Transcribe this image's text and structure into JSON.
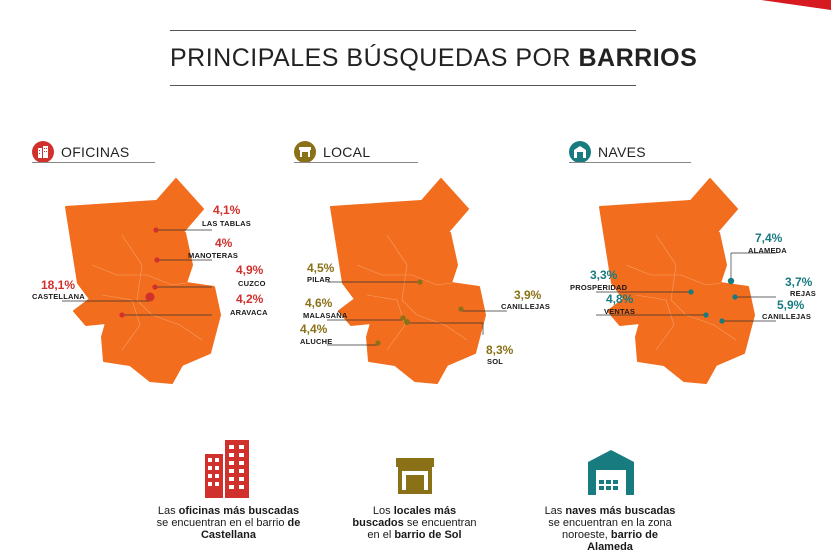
{
  "title": {
    "regular": "PRINCIPALES BÚSQUEDAS POR",
    "bold": "BARRIOS"
  },
  "colors": {
    "map": "#f26d1d",
    "oficinas": "#d0312d",
    "local": "#8a7118",
    "naves": "#177b80"
  },
  "sections": {
    "oficinas": {
      "label": "OFICINAS",
      "icon": "office-building-icon",
      "points": [
        {
          "pct": "4,1%",
          "name": "LAS TABLAS"
        },
        {
          "pct": "4%",
          "name": "MANOTERAS"
        },
        {
          "pct": "4,9%",
          "name": "CUZCO"
        },
        {
          "pct": "18,1%",
          "name": "CASTELLANA"
        },
        {
          "pct": "4,2%",
          "name": "ARAVACA"
        }
      ],
      "desc": {
        "a": "Las ",
        "b1": "oficinas más buscadas",
        "c": " se encuentran en el barrio ",
        "b2": "de Castellana"
      }
    },
    "local": {
      "label": "LOCAL",
      "icon": "shop-icon",
      "points": [
        {
          "pct": "4,5%",
          "name": "PILAR"
        },
        {
          "pct": "3,9%",
          "name": "CANILLEJAS"
        },
        {
          "pct": "4,6%",
          "name": "MALASAÑA"
        },
        {
          "pct": "4,4%",
          "name": "ALUCHE"
        },
        {
          "pct": "8,3%",
          "name": "SOL"
        }
      ],
      "desc": {
        "a": "Los ",
        "b1": "locales más buscados",
        "c": " se encuentran en el ",
        "b2": "barrio de Sol"
      }
    },
    "naves": {
      "label": "NAVES",
      "icon": "warehouse-icon",
      "points": [
        {
          "pct": "7,4%",
          "name": "ALAMEDA"
        },
        {
          "pct": "3,3%",
          "name": "PROSPERIDAD"
        },
        {
          "pct": "3,7%",
          "name": "REJAS"
        },
        {
          "pct": "4,8%",
          "name": "VENTAS"
        },
        {
          "pct": "5,9%",
          "name": "CANILLEJAS"
        }
      ],
      "desc": {
        "a": "Las ",
        "b1": "naves más buscadas",
        "c": " se encuentran en la zona noroeste, ",
        "b2": "barrio de Alameda"
      }
    }
  }
}
